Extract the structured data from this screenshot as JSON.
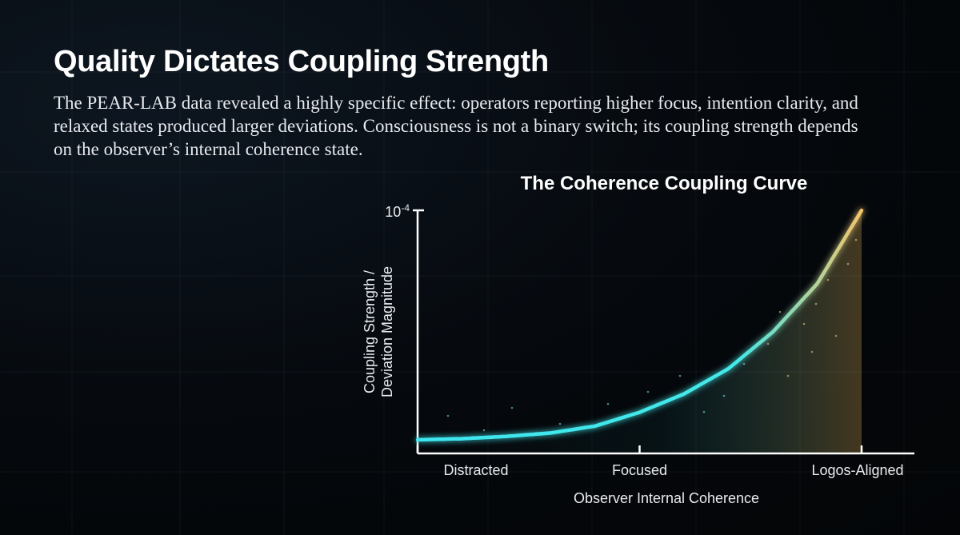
{
  "slide": {
    "title": "Quality Dictates Coupling Strength",
    "body": "The PEAR-LAB data revealed a highly specific effect: operators reporting higher focus, intention clarity, and relaxed states produced larger deviations. Consciousness is not a binary switch; its coupling strength depends on the observer’s internal coherence state."
  },
  "chart_data": {
    "type": "line",
    "title": "The Coherence Coupling Curve",
    "xlabel": "Observer Internal Coherence",
    "ylabel_lines": [
      "Coupling Strength /",
      "Deviation Magnitude"
    ],
    "y_max_label": "10",
    "y_max_exponent": "-4",
    "categories": [
      "Distracted",
      "Focused",
      "Logos-Aligned"
    ],
    "x_range": [
      0,
      1
    ],
    "category_positions": [
      0.0,
      0.5,
      1.0
    ],
    "ylim": [
      0,
      1
    ],
    "curve": {
      "x": [
        0.0,
        0.1,
        0.2,
        0.3,
        0.4,
        0.5,
        0.6,
        0.7,
        0.8,
        0.9,
        1.0
      ],
      "y": [
        0.0,
        0.005,
        0.015,
        0.03,
        0.06,
        0.12,
        0.2,
        0.31,
        0.47,
        0.68,
        1.0
      ]
    },
    "grid": false,
    "colors": {
      "curve_start": "#3ee6f0",
      "curve_end": "#f3c56a",
      "axis": "#ffffff"
    }
  }
}
